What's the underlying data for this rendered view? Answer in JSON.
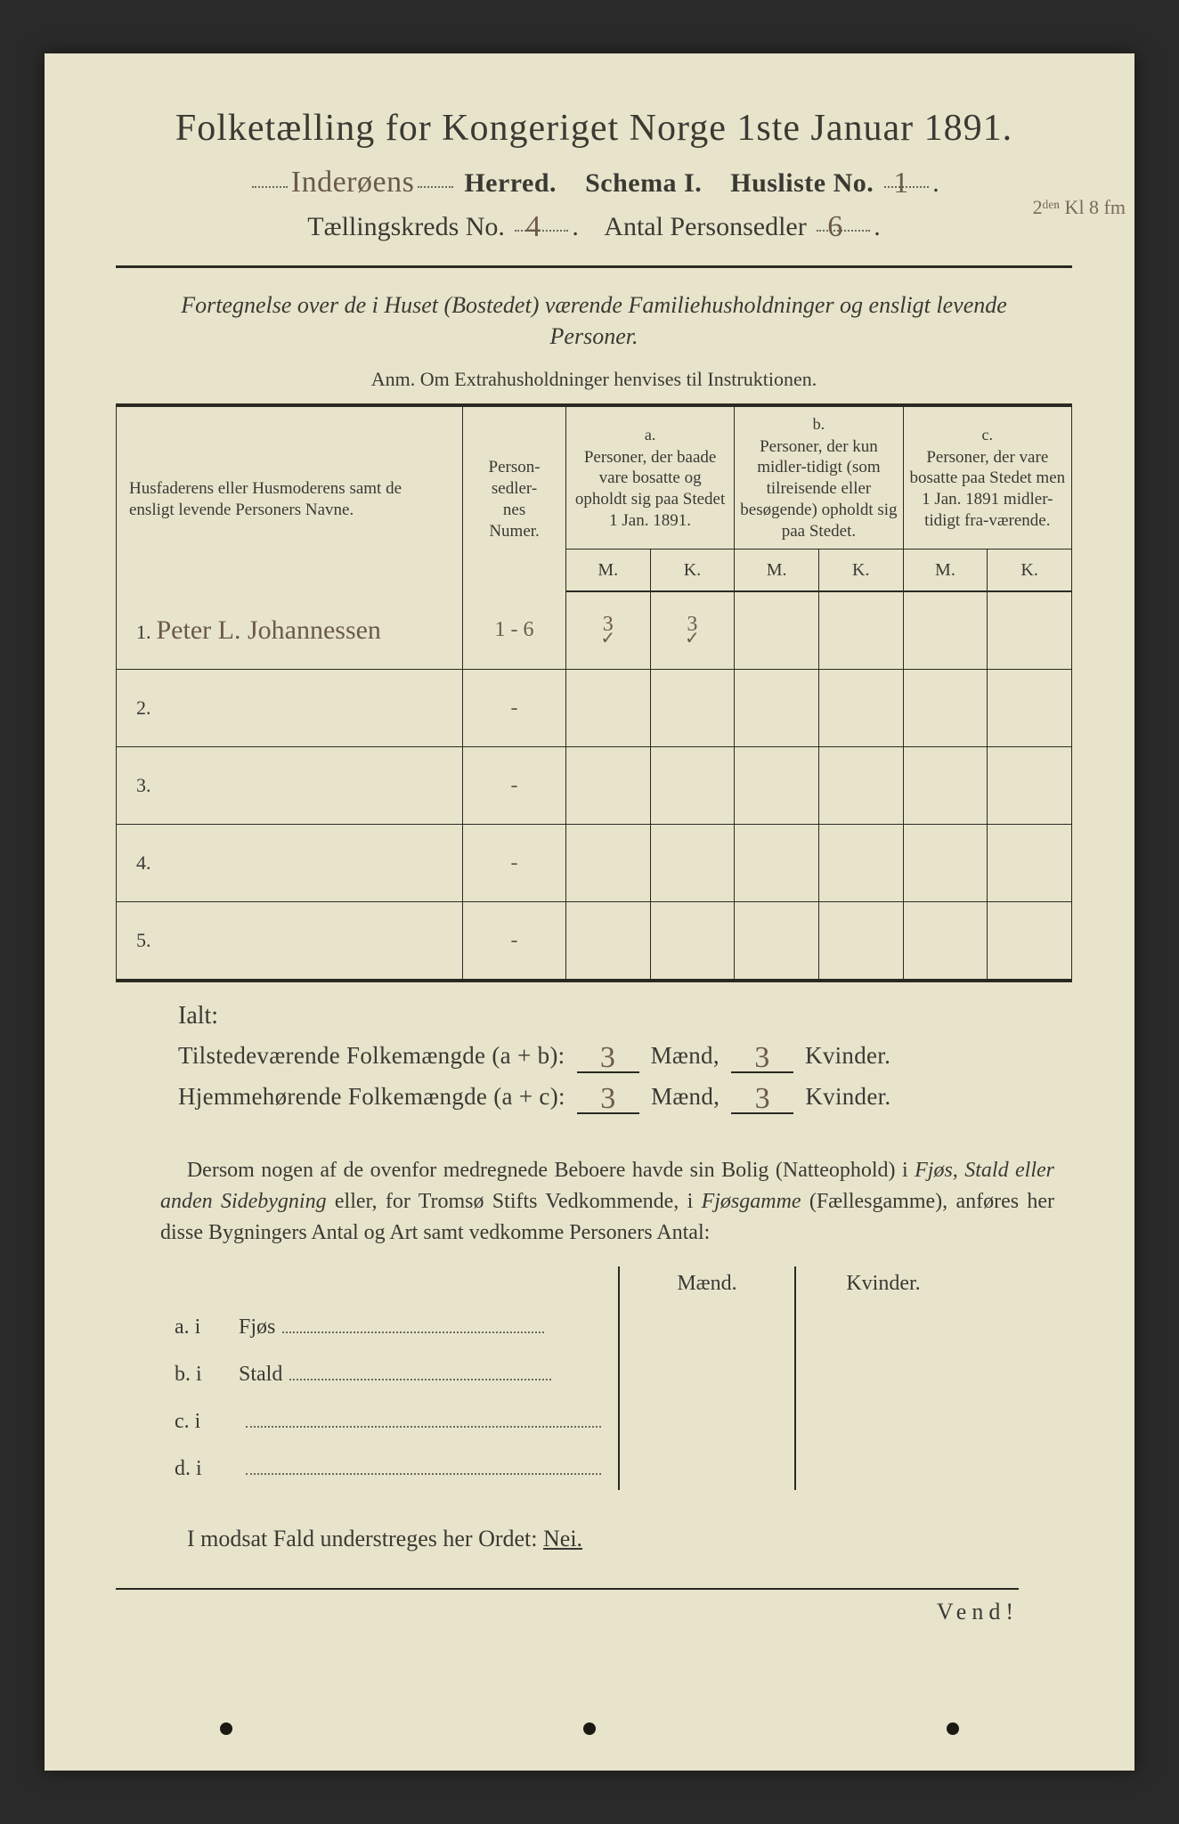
{
  "colors": {
    "page_bg": "#e8e4cc",
    "outer_bg": "#2a2a2a",
    "ink": "#3a3a32",
    "handwriting": "#6b5a4a",
    "rule": "#2a2a22",
    "dots": "#6a6a5a"
  },
  "header": {
    "title": "Folketælling for Kongeriget Norge 1ste Januar 1891.",
    "herred_hand": "Inderøens",
    "herred_label": "Herred.",
    "schema_label": "Schema I.",
    "husliste_label": "Husliste No.",
    "husliste_no_hand": "1",
    "margin_note": "2ᵈᵉⁿ Kl 8 fm",
    "kreds_label": "Tællingskreds No.",
    "kreds_no_hand": "4",
    "antal_label": "Antal Personsedler",
    "antal_hand": "6"
  },
  "intro": {
    "fortegnelse": "Fortegnelse over de i Huset (Bostedet) værende Familiehusholdninger og ensligt levende Personer.",
    "anm": "Anm.  Om Extrahusholdninger henvises til Instruktionen."
  },
  "table": {
    "col_name": "Husfaderens eller Husmoderens samt de ensligt levende Personers Navne.",
    "col_ps": "Person-\nsedler-\nnes\nNumer.",
    "col_a_top": "a.",
    "col_a": "Personer, der baade vare bosatte og opholdt sig paa Stedet 1 Jan. 1891.",
    "col_b_top": "b.",
    "col_b": "Personer, der kun midler-tidigt (som tilreisende eller besøgende) opholdt sig paa Stedet.",
    "col_c_top": "c.",
    "col_c": "Personer, der vare bosatte paa Stedet men 1 Jan. 1891 midler-tidigt fra-værende.",
    "M": "M.",
    "K": "K.",
    "rows": [
      {
        "num": "1.",
        "name_hand": "Peter L. Johannessen",
        "ps_hand": "1 - 6",
        "aM": "3",
        "aM_chk": "✓",
        "aK": "3",
        "aK_chk": "✓",
        "bM": "",
        "bK": "",
        "cM": "",
        "cK": ""
      },
      {
        "num": "2.",
        "name_hand": "",
        "ps_hand": "-",
        "aM": "",
        "aM_chk": "",
        "aK": "",
        "aK_chk": "",
        "bM": "",
        "bK": "",
        "cM": "",
        "cK": ""
      },
      {
        "num": "3.",
        "name_hand": "",
        "ps_hand": "-",
        "aM": "",
        "aM_chk": "",
        "aK": "",
        "aK_chk": "",
        "bM": "",
        "bK": "",
        "cM": "",
        "cK": ""
      },
      {
        "num": "4.",
        "name_hand": "",
        "ps_hand": "-",
        "aM": "",
        "aM_chk": "",
        "aK": "",
        "aK_chk": "",
        "bM": "",
        "bK": "",
        "cM": "",
        "cK": ""
      },
      {
        "num": "5.",
        "name_hand": "",
        "ps_hand": "-",
        "aM": "",
        "aM_chk": "",
        "aK": "",
        "aK_chk": "",
        "bM": "",
        "bK": "",
        "cM": "",
        "cK": ""
      }
    ]
  },
  "totals": {
    "ialt": "Ialt:",
    "line1_label": "Tilstedeværende Folkemængde (a + b):",
    "line2_label": "Hjemmehørende Folkemængde (a + c):",
    "maend": "Mænd,",
    "kvinder": "Kvinder.",
    "l1_m": "3",
    "l1_k": "3",
    "l2_m": "3",
    "l2_k": "3"
  },
  "para": {
    "text1": "Dersom nogen af de ovenfor medregnede Beboere havde sin Bolig (Natteophold) i ",
    "ital1": "Fjøs, Stald eller anden Sidebygning",
    "text2": " eller, for Tromsø Stifts Vedkommende, i ",
    "ital2": "Fjøsgamme",
    "text3": " (Fællesgamme), anføres her disse Bygningers Antal og Art samt vedkomme Personers Antal:"
  },
  "byg": {
    "hdr_m": "Mænd.",
    "hdr_k": "Kvinder.",
    "rows": [
      {
        "lab": "a.  i",
        "txt": "Fjøs"
      },
      {
        "lab": "b.  i",
        "txt": "Stald"
      },
      {
        "lab": "c.  i",
        "txt": ""
      },
      {
        "lab": "d.  i",
        "txt": ""
      }
    ]
  },
  "nei": "I modsat Fald understreges her Ordet: ",
  "nei_word": "Nei.",
  "vend": "Vend!"
}
